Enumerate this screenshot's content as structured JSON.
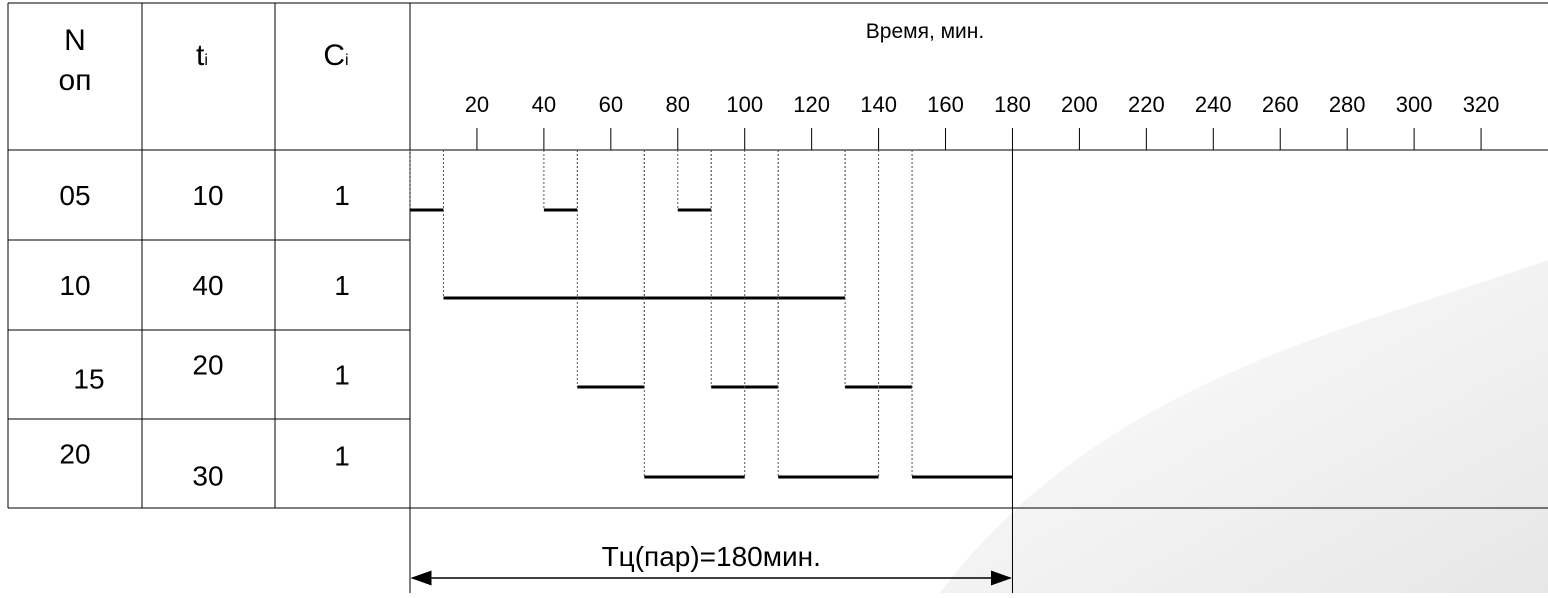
{
  "table": {
    "header": [
      {
        "lines": [
          "N",
          "оп"
        ]
      },
      {
        "base": "t",
        "sub": "i"
      },
      {
        "base": "C",
        "sub": "i"
      }
    ],
    "rows": [
      [
        "05",
        "10",
        "1"
      ],
      [
        "10",
        "40",
        "1"
      ],
      [
        "15",
        "20",
        "1"
      ],
      [
        "20",
        "30",
        "1"
      ]
    ]
  },
  "timeline": {
    "axis_title": "Время, мин.",
    "xlim": [
      0,
      340
    ],
    "xticks": [
      20,
      40,
      60,
      80,
      100,
      120,
      140,
      160,
      180,
      200,
      220,
      240,
      260,
      280,
      300,
      320
    ],
    "bars": [
      [
        [
          0,
          10
        ],
        [
          40,
          50
        ],
        [
          80,
          90
        ]
      ],
      [
        [
          10,
          130
        ]
      ],
      [
        [
          50,
          70
        ],
        [
          90,
          110
        ],
        [
          130,
          150
        ]
      ],
      [
        [
          70,
          100
        ],
        [
          110,
          140
        ],
        [
          150,
          180
        ]
      ]
    ],
    "cycle": {
      "label": "Tц(пар)=180мин.",
      "value": 180
    }
  }
}
